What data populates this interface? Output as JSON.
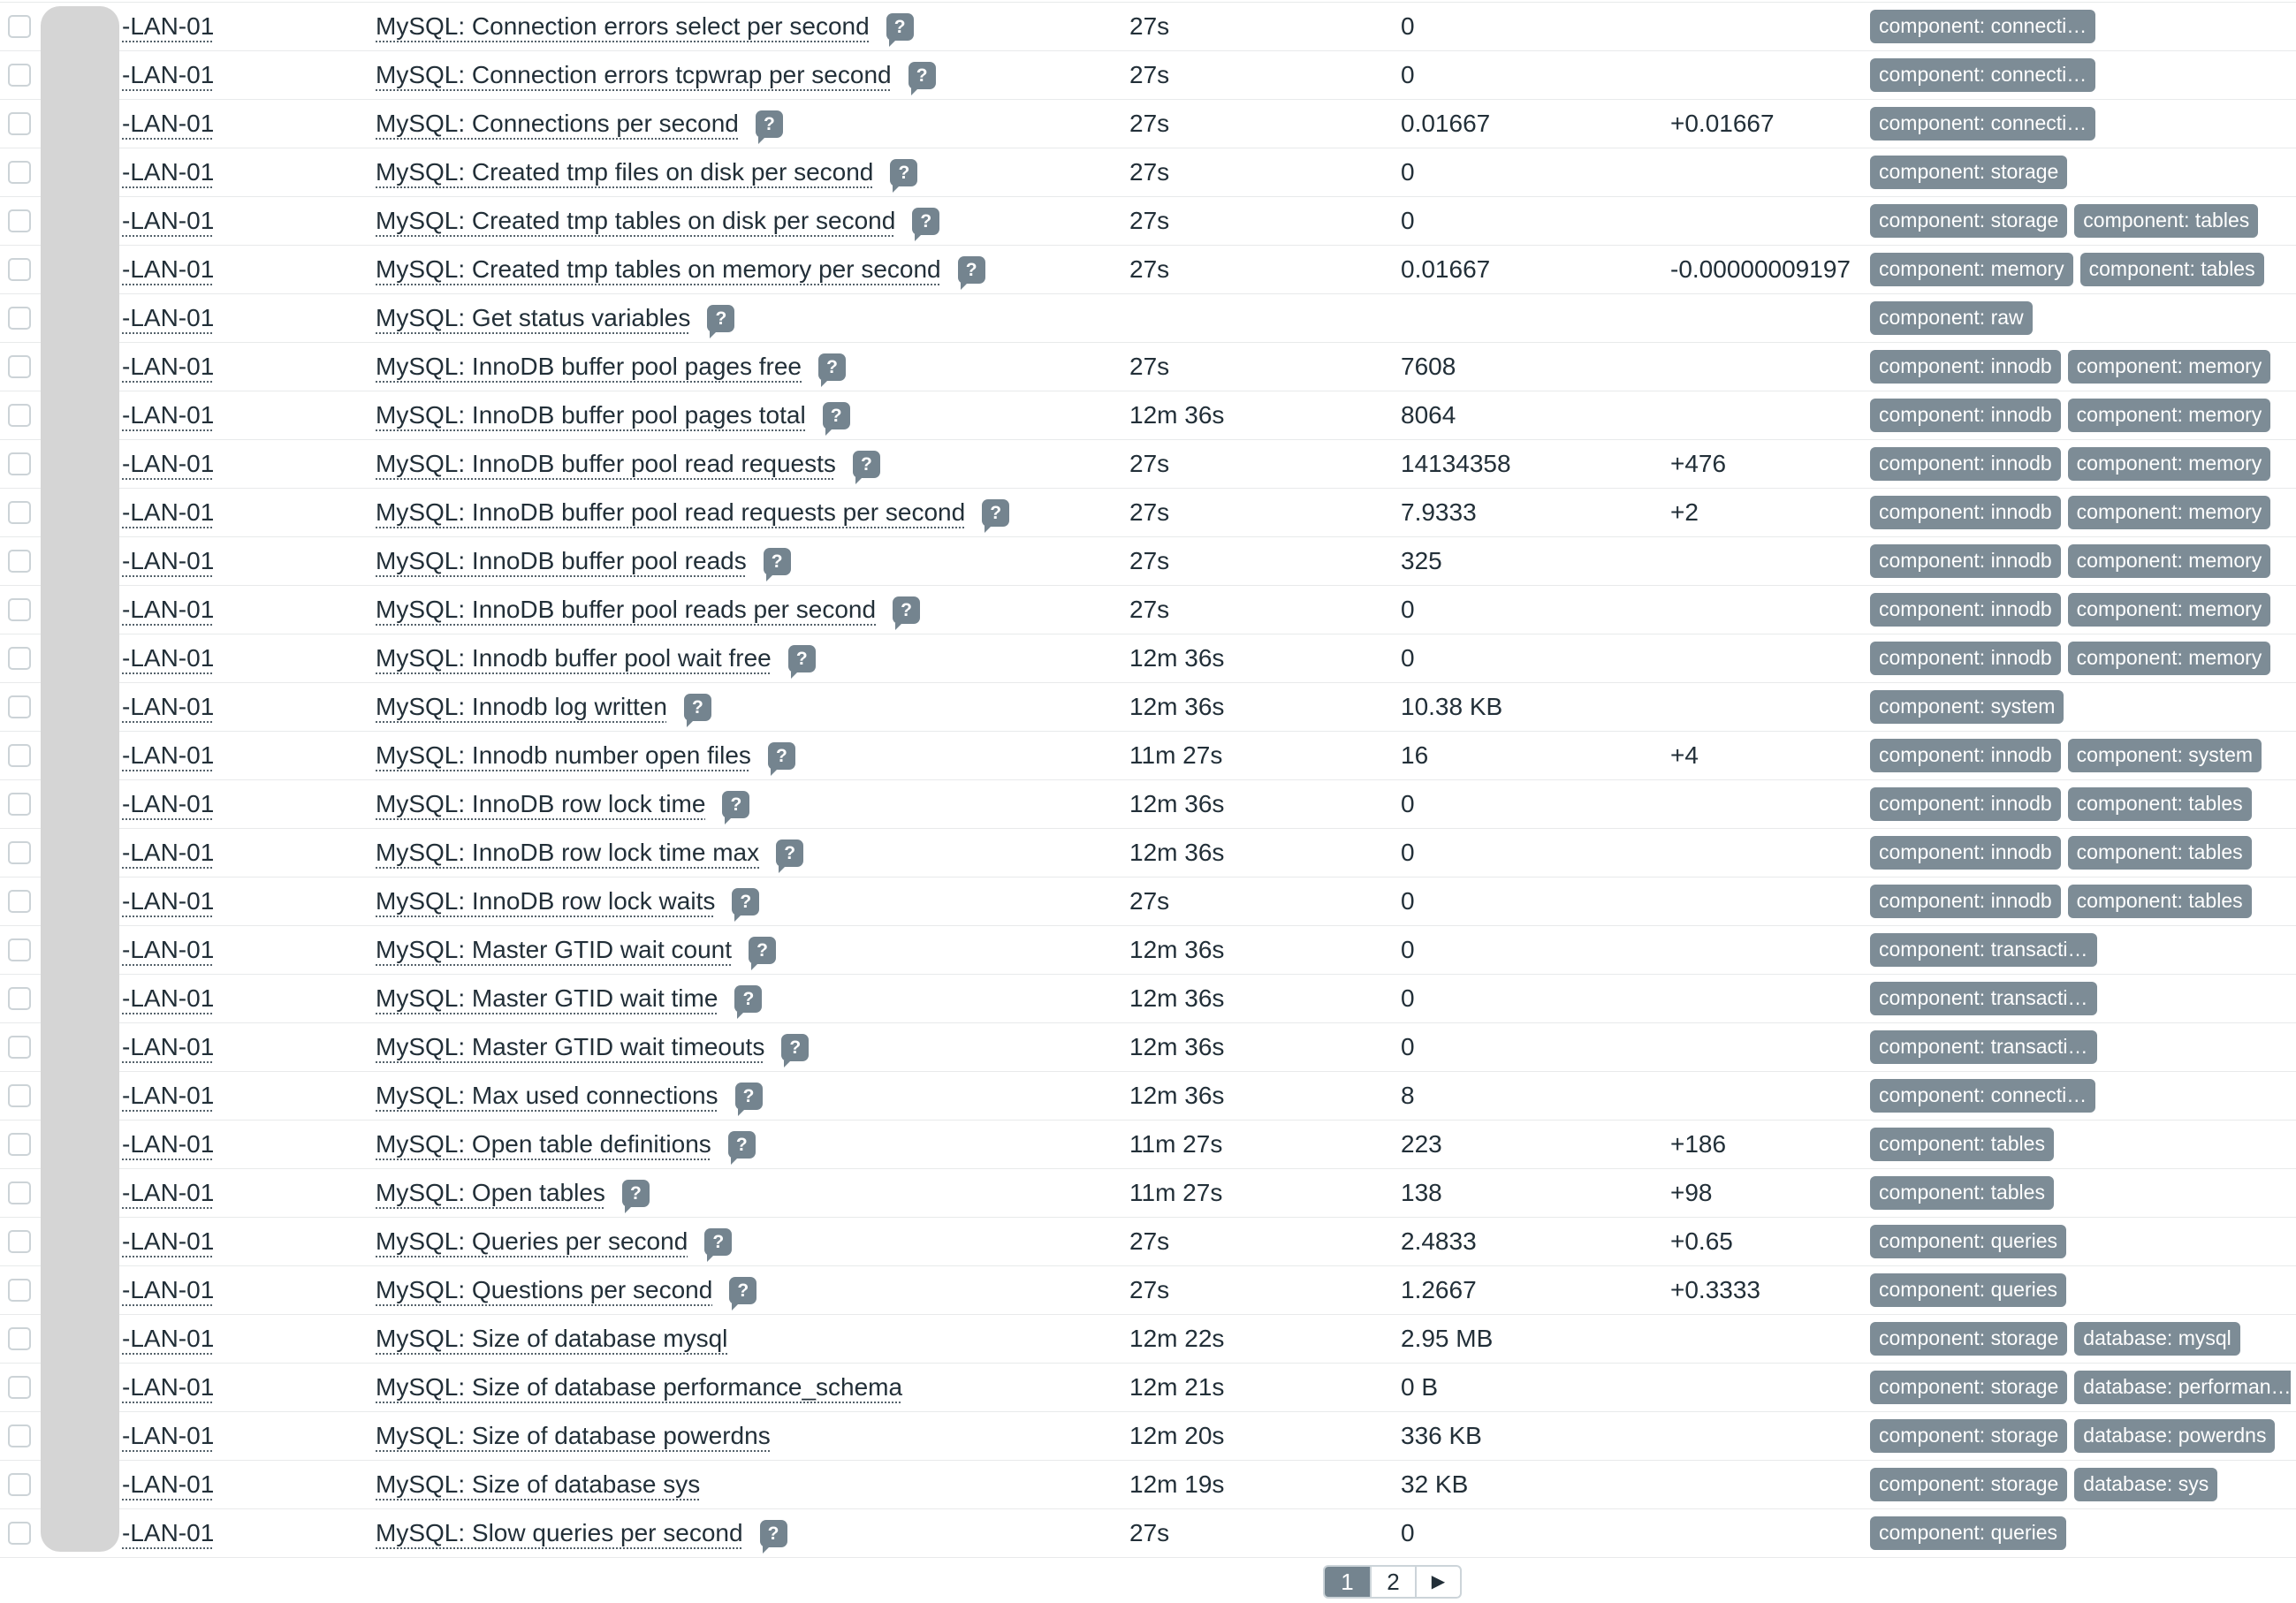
{
  "table": {
    "host_label": "-LAN-01",
    "rows": [
      {
        "name": "MySQL: Connection errors select per second",
        "help": true,
        "interval": "27s",
        "value": "0",
        "change": "",
        "tags": [
          "component: connecti…"
        ]
      },
      {
        "name": "MySQL: Connection errors tcpwrap per second",
        "help": true,
        "interval": "27s",
        "value": "0",
        "change": "",
        "tags": [
          "component: connecti…"
        ]
      },
      {
        "name": "MySQL: Connections per second",
        "help": true,
        "interval": "27s",
        "value": "0.01667",
        "change": "+0.01667",
        "tags": [
          "component: connecti…"
        ]
      },
      {
        "name": "MySQL: Created tmp files on disk per second",
        "help": true,
        "interval": "27s",
        "value": "0",
        "change": "",
        "tags": [
          "component: storage"
        ]
      },
      {
        "name": "MySQL: Created tmp tables on disk per second",
        "help": true,
        "interval": "27s",
        "value": "0",
        "change": "",
        "tags": [
          "component: storage",
          "component: tables"
        ]
      },
      {
        "name": "MySQL: Created tmp tables on memory per second",
        "help": true,
        "interval": "27s",
        "value": "0.01667",
        "change": "-0.00000009197",
        "tags": [
          "component: memory",
          "component: tables"
        ]
      },
      {
        "name": "MySQL: Get status variables",
        "help": true,
        "interval": "",
        "value": "",
        "change": "",
        "tags": [
          "component: raw"
        ]
      },
      {
        "name": "MySQL: InnoDB buffer pool pages free",
        "help": true,
        "interval": "27s",
        "value": "7608",
        "change": "",
        "tags": [
          "component: innodb",
          "component: memory"
        ]
      },
      {
        "name": "MySQL: InnoDB buffer pool pages total",
        "help": true,
        "interval": "12m 36s",
        "value": "8064",
        "change": "",
        "tags": [
          "component: innodb",
          "component: memory"
        ]
      },
      {
        "name": "MySQL: InnoDB buffer pool read requests",
        "help": true,
        "interval": "27s",
        "value": "14134358",
        "change": "+476",
        "tags": [
          "component: innodb",
          "component: memory"
        ]
      },
      {
        "name": "MySQL: InnoDB buffer pool read requests per second",
        "help": true,
        "interval": "27s",
        "value": "7.9333",
        "change": "+2",
        "tags": [
          "component: innodb",
          "component: memory"
        ]
      },
      {
        "name": "MySQL: InnoDB buffer pool reads",
        "help": true,
        "interval": "27s",
        "value": "325",
        "change": "",
        "tags": [
          "component: innodb",
          "component: memory"
        ]
      },
      {
        "name": "MySQL: InnoDB buffer pool reads per second",
        "help": true,
        "interval": "27s",
        "value": "0",
        "change": "",
        "tags": [
          "component: innodb",
          "component: memory"
        ]
      },
      {
        "name": "MySQL: Innodb buffer pool wait free",
        "help": true,
        "interval": "12m 36s",
        "value": "0",
        "change": "",
        "tags": [
          "component: innodb",
          "component: memory"
        ]
      },
      {
        "name": "MySQL: Innodb log written",
        "help": true,
        "interval": "12m 36s",
        "value": "10.38 KB",
        "change": "",
        "tags": [
          "component: system"
        ]
      },
      {
        "name": "MySQL: Innodb number open files",
        "help": true,
        "interval": "11m 27s",
        "value": "16",
        "change": "+4",
        "tags": [
          "component: innodb",
          "component: system"
        ]
      },
      {
        "name": "MySQL: InnoDB row lock time",
        "help": true,
        "interval": "12m 36s",
        "value": "0",
        "change": "",
        "tags": [
          "component: innodb",
          "component: tables"
        ]
      },
      {
        "name": "MySQL: InnoDB row lock time max",
        "help": true,
        "interval": "12m 36s",
        "value": "0",
        "change": "",
        "tags": [
          "component: innodb",
          "component: tables"
        ]
      },
      {
        "name": "MySQL: InnoDB row lock waits",
        "help": true,
        "interval": "27s",
        "value": "0",
        "change": "",
        "tags": [
          "component: innodb",
          "component: tables"
        ]
      },
      {
        "name": "MySQL: Master GTID wait count",
        "help": true,
        "interval": "12m 36s",
        "value": "0",
        "change": "",
        "tags": [
          "component: transacti…"
        ]
      },
      {
        "name": "MySQL: Master GTID wait time",
        "help": true,
        "interval": "12m 36s",
        "value": "0",
        "change": "",
        "tags": [
          "component: transacti…"
        ]
      },
      {
        "name": "MySQL: Master GTID wait timeouts",
        "help": true,
        "interval": "12m 36s",
        "value": "0",
        "change": "",
        "tags": [
          "component: transacti…"
        ]
      },
      {
        "name": "MySQL: Max used connections",
        "help": true,
        "interval": "12m 36s",
        "value": "8",
        "change": "",
        "tags": [
          "component: connecti…"
        ]
      },
      {
        "name": "MySQL: Open table definitions",
        "help": true,
        "interval": "11m 27s",
        "value": "223",
        "change": "+186",
        "tags": [
          "component: tables"
        ]
      },
      {
        "name": "MySQL: Open tables",
        "help": true,
        "interval": "11m 27s",
        "value": "138",
        "change": "+98",
        "tags": [
          "component: tables"
        ]
      },
      {
        "name": "MySQL: Queries per second",
        "help": true,
        "interval": "27s",
        "value": "2.4833",
        "change": "+0.65",
        "tags": [
          "component: queries"
        ]
      },
      {
        "name": "MySQL: Questions per second",
        "help": true,
        "interval": "27s",
        "value": "1.2667",
        "change": "+0.3333",
        "tags": [
          "component: queries"
        ]
      },
      {
        "name": "MySQL: Size of database mysql",
        "help": false,
        "interval": "12m 22s",
        "value": "2.95 MB",
        "change": "",
        "tags": [
          "component: storage",
          "database: mysql"
        ]
      },
      {
        "name": "MySQL: Size of database performance_schema",
        "help": false,
        "interval": "12m 21s",
        "value": "0 B",
        "change": "",
        "tags": [
          "component: storage",
          "database: performan…"
        ]
      },
      {
        "name": "MySQL: Size of database powerdns",
        "help": false,
        "interval": "12m 20s",
        "value": "336 KB",
        "change": "",
        "tags": [
          "component: storage",
          "database: powerdns"
        ]
      },
      {
        "name": "MySQL: Size of database sys",
        "help": false,
        "interval": "12m 19s",
        "value": "32 KB",
        "change": "",
        "tags": [
          "component: storage",
          "database: sys"
        ]
      },
      {
        "name": "MySQL: Slow queries per second",
        "help": true,
        "interval": "27s",
        "value": "0",
        "change": "",
        "tags": [
          "component: queries"
        ]
      }
    ]
  },
  "pagination": {
    "buttons": [
      {
        "label": "1",
        "active": true,
        "name": "page-1-button"
      },
      {
        "label": "2",
        "active": false,
        "name": "page-2-button"
      },
      {
        "label": "▶",
        "active": false,
        "name": "next-page-button"
      }
    ]
  },
  "icons": {
    "help_glyph": "?",
    "next_page_glyph": "▶"
  },
  "colors": {
    "tag_badge": "#7d8c96",
    "help_icon": "#74848f",
    "pagination_active": "#74848f",
    "redaction_bar": "#d5d5d5",
    "row_border": "#e8eaeb",
    "text": "#222f38"
  }
}
